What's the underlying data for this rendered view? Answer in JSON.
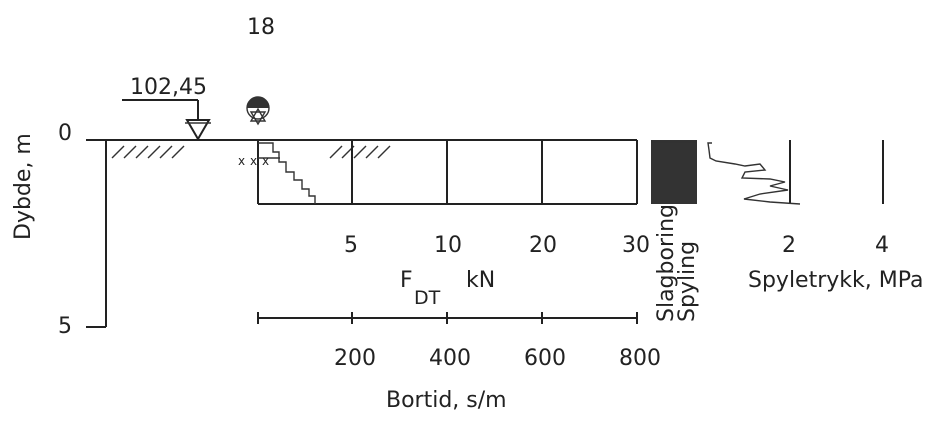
{
  "borehole_number": "18",
  "surface_elevation": "102,45",
  "depth_axis": {
    "label": "Dybde, m",
    "ticks": [
      "0",
      "5"
    ]
  },
  "force_axis": {
    "ticks": [
      "5",
      "10",
      "20",
      "30"
    ],
    "label_main": "F",
    "label_sub": "DT",
    "label_unit": "kN"
  },
  "method_labels": {
    "hammer": "Slagboring",
    "flush": "Spyling"
  },
  "pressure_axis": {
    "ticks": [
      "2",
      "4"
    ],
    "label": "Spyletrykk, MPa"
  },
  "time_axis": {
    "ticks": [
      "200",
      "400",
      "600",
      "800"
    ],
    "label": "Bortid, s/m"
  },
  "colors": {
    "ink": "#222222",
    "fill": "#333333",
    "background": "#ffffff"
  }
}
